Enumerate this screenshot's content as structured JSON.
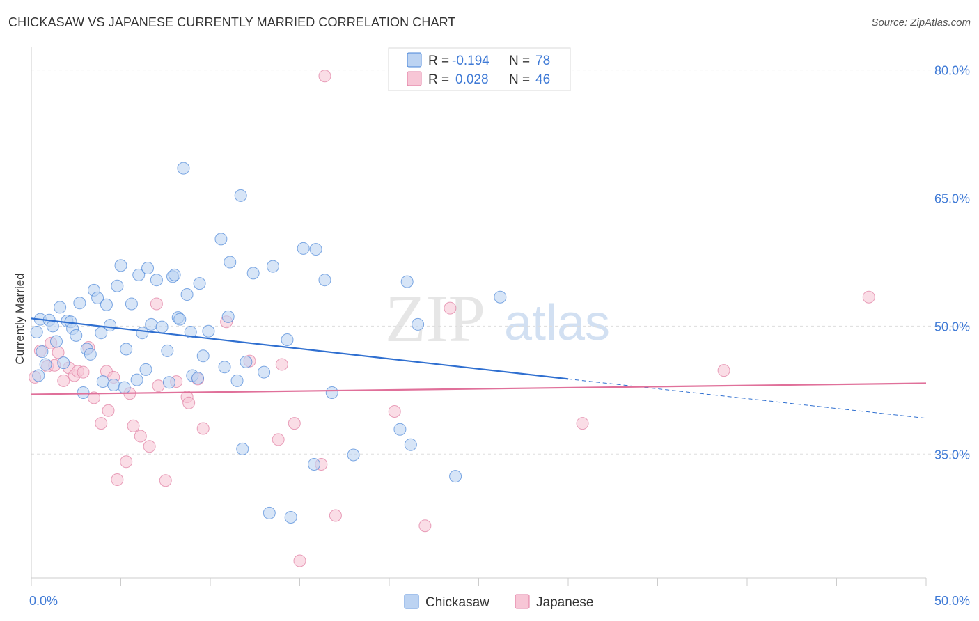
{
  "header": {
    "title": "CHICKASAW VS JAPANESE CURRENTLY MARRIED CORRELATION CHART",
    "source": "Source: ZipAtlas.com"
  },
  "watermark": {
    "zip": "ZIP",
    "atlas": "atlas"
  },
  "colors": {
    "chickasaw": "#4a86d8",
    "chickasaw_fill": "#bcd3f2",
    "chickasaw_line": "#2f6fd0",
    "japanese": "#e07aa0",
    "japanese_fill": "#f7c6d6",
    "japanese_line": "#e0709a",
    "tick_label": "#3f7ad6"
  },
  "legend": {
    "chickasaw": {
      "r_label": "R =",
      "r_value": "-0.194",
      "n_label": "N =",
      "n_value": "78"
    },
    "japanese": {
      "r_label": "R =",
      "r_value": "0.028",
      "n_label": "N =",
      "n_value": "46"
    }
  },
  "chart_data": {
    "type": "scatter",
    "title": "CHICKASAW VS JAPANESE CURRENTLY MARRIED CORRELATION CHART",
    "xlabel": "",
    "ylabel": "Currently Married",
    "xlim": [
      0,
      50
    ],
    "ylim": [
      20.5,
      82.5
    ],
    "x_tick_labels": [
      {
        "value": 0,
        "label": "0.0%"
      },
      {
        "value": 50,
        "label": "50.0%"
      }
    ],
    "y_tick_labels": [
      {
        "value": 80,
        "label": "80.0%"
      },
      {
        "value": 65,
        "label": "65.0%"
      },
      {
        "value": 50,
        "label": "50.0%"
      },
      {
        "value": 35,
        "label": "35.0%"
      }
    ],
    "legend_labels": [
      "Chickasaw",
      "Japanese"
    ],
    "series": [
      {
        "name": "Chickasaw",
        "r": -0.194,
        "n": 78,
        "trend": {
          "x0": 0,
          "y0": 50.9,
          "x1": 30,
          "y1": 43.8,
          "dash_x1": 50,
          "dash_y1": 39.2
        },
        "points": [
          [
            0.4,
            44.2
          ],
          [
            0.3,
            49.3
          ],
          [
            0.5,
            50.8
          ],
          [
            0.6,
            47.0
          ],
          [
            0.8,
            45.5
          ],
          [
            1.0,
            50.7
          ],
          [
            1.2,
            50.0
          ],
          [
            1.4,
            48.2
          ],
          [
            1.6,
            52.2
          ],
          [
            1.8,
            45.7
          ],
          [
            2.0,
            50.6
          ],
          [
            2.2,
            50.5
          ],
          [
            2.3,
            49.7
          ],
          [
            2.5,
            48.9
          ],
          [
            2.7,
            52.7
          ],
          [
            2.9,
            42.2
          ],
          [
            3.1,
            47.3
          ],
          [
            3.3,
            46.7
          ],
          [
            3.5,
            54.2
          ],
          [
            3.7,
            53.3
          ],
          [
            3.9,
            49.2
          ],
          [
            4.0,
            43.5
          ],
          [
            4.2,
            52.5
          ],
          [
            4.4,
            50.1
          ],
          [
            4.6,
            43.1
          ],
          [
            4.8,
            54.7
          ],
          [
            5.0,
            57.1
          ],
          [
            5.2,
            42.8
          ],
          [
            5.3,
            47.3
          ],
          [
            5.6,
            52.6
          ],
          [
            5.9,
            43.7
          ],
          [
            6.0,
            56.0
          ],
          [
            6.2,
            49.2
          ],
          [
            6.4,
            44.9
          ],
          [
            6.5,
            56.8
          ],
          [
            6.7,
            50.2
          ],
          [
            7.0,
            55.4
          ],
          [
            7.3,
            49.9
          ],
          [
            7.6,
            47.1
          ],
          [
            7.7,
            43.4
          ],
          [
            7.9,
            55.8
          ],
          [
            8.0,
            56.0
          ],
          [
            8.2,
            51.0
          ],
          [
            8.3,
            50.8
          ],
          [
            8.7,
            53.7
          ],
          [
            8.9,
            49.3
          ],
          [
            9.0,
            44.2
          ],
          [
            9.4,
            55.0
          ],
          [
            9.6,
            46.5
          ],
          [
            9.9,
            49.4
          ],
          [
            10.6,
            60.2
          ],
          [
            10.8,
            45.2
          ],
          [
            11.0,
            51.1
          ],
          [
            11.1,
            57.5
          ],
          [
            11.5,
            43.6
          ],
          [
            11.7,
            65.3
          ],
          [
            11.8,
            35.6
          ],
          [
            12.0,
            45.8
          ],
          [
            12.4,
            56.2
          ],
          [
            13.0,
            44.6
          ],
          [
            13.3,
            28.1
          ],
          [
            13.5,
            57.0
          ],
          [
            14.3,
            48.4
          ],
          [
            14.5,
            27.6
          ],
          [
            15.2,
            59.1
          ],
          [
            15.8,
            33.8
          ],
          [
            15.9,
            59.0
          ],
          [
            16.4,
            55.4
          ],
          [
            16.8,
            42.2
          ],
          [
            18.0,
            34.9
          ],
          [
            20.6,
            37.9
          ],
          [
            21.0,
            55.2
          ],
          [
            21.2,
            36.1
          ],
          [
            21.6,
            50.2
          ],
          [
            23.7,
            32.4
          ],
          [
            26.2,
            53.4
          ],
          [
            8.5,
            68.5
          ],
          [
            9.3,
            43.9
          ]
        ]
      },
      {
        "name": "Japanese",
        "r": 0.028,
        "n": 46,
        "trend": {
          "x0": 0,
          "y0": 42.0,
          "x1": 50,
          "y1": 43.3
        },
        "points": [
          [
            0.2,
            44.0
          ],
          [
            0.5,
            47.1
          ],
          [
            0.9,
            45.3
          ],
          [
            1.1,
            48.0
          ],
          [
            1.3,
            45.4
          ],
          [
            1.5,
            46.9
          ],
          [
            1.8,
            43.6
          ],
          [
            2.1,
            45.1
          ],
          [
            2.4,
            44.2
          ],
          [
            2.6,
            44.7
          ],
          [
            2.9,
            44.6
          ],
          [
            3.2,
            47.5
          ],
          [
            3.5,
            41.6
          ],
          [
            3.9,
            38.6
          ],
          [
            4.2,
            44.7
          ],
          [
            4.3,
            40.1
          ],
          [
            4.6,
            44.0
          ],
          [
            4.8,
            32.0
          ],
          [
            5.3,
            34.1
          ],
          [
            5.5,
            42.1
          ],
          [
            5.7,
            38.3
          ],
          [
            6.1,
            37.1
          ],
          [
            6.6,
            35.9
          ],
          [
            7.0,
            52.6
          ],
          [
            7.1,
            43.0
          ],
          [
            7.5,
            31.9
          ],
          [
            8.1,
            43.5
          ],
          [
            8.7,
            41.7
          ],
          [
            8.8,
            41.0
          ],
          [
            9.3,
            43.8
          ],
          [
            9.6,
            38.0
          ],
          [
            10.9,
            50.5
          ],
          [
            12.2,
            45.9
          ],
          [
            13.8,
            36.7
          ],
          [
            14.0,
            45.5
          ],
          [
            14.7,
            38.6
          ],
          [
            16.2,
            33.8
          ],
          [
            16.4,
            79.3
          ],
          [
            17.0,
            27.8
          ],
          [
            20.3,
            40.0
          ],
          [
            22.0,
            26.6
          ],
          [
            23.4,
            52.1
          ],
          [
            30.8,
            38.6
          ],
          [
            38.7,
            44.8
          ],
          [
            46.8,
            53.4
          ],
          [
            15.0,
            22.5
          ]
        ]
      }
    ]
  }
}
